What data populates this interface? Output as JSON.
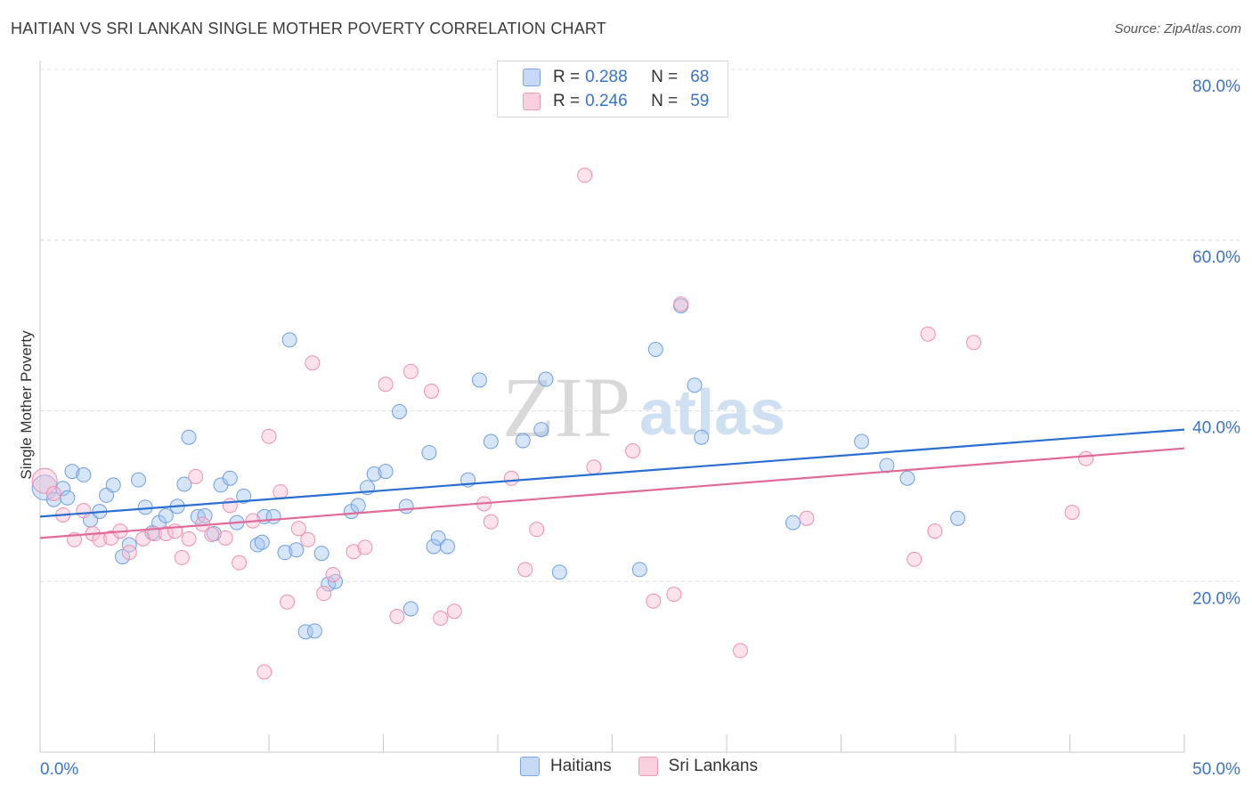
{
  "header": {
    "title": "HAITIAN VS SRI LANKAN SINGLE MOTHER POVERTY CORRELATION CHART",
    "source": "Source: ZipAtlas.com"
  },
  "watermark": {
    "zip": "ZIP",
    "atlas": "atlas"
  },
  "legend": {
    "rows": [
      {
        "r_label": "R =",
        "r_value": "0.288",
        "n_label": "N =",
        "n_value": "68"
      },
      {
        "r_label": "R =",
        "r_value": "0.246",
        "n_label": "N =",
        "n_value": "59"
      }
    ]
  },
  "bottom_legend": {
    "haitians": "Haitians",
    "srilankans": "Sri Lankans"
  },
  "chart_data": {
    "type": "scatter",
    "title": "HAITIAN VS SRI LANKAN SINGLE MOTHER POVERTY CORRELATION CHART",
    "xlabel": "",
    "ylabel": "Single Mother Poverty",
    "xlim": [
      0,
      50
    ],
    "ylim": [
      0,
      80
    ],
    "x_tick_labels": [
      "0.0%",
      "50.0%"
    ],
    "y_ticks": [
      20,
      40,
      60,
      80
    ],
    "y_tick_labels": [
      "20.0%",
      "40.0%",
      "60.0%",
      "80.0%"
    ],
    "grid": "horizontal dashed",
    "legend_position": "top-center",
    "colors": {
      "haitians": "#6f9fe0",
      "srilankans": "#ee8fb0",
      "haitians_line": "#2a6ed2",
      "srilankans_line": "#e06a98"
    },
    "series": [
      {
        "name": "Haitians",
        "trend": [
          [
            0,
            27.6
          ],
          [
            50,
            37.8
          ]
        ],
        "points": [
          [
            0.2,
            31.0
          ],
          [
            0.6,
            29.6
          ],
          [
            1.0,
            30.9
          ],
          [
            1.2,
            29.8
          ],
          [
            1.4,
            32.9
          ],
          [
            1.9,
            32.5
          ],
          [
            2.2,
            27.2
          ],
          [
            2.6,
            28.2
          ],
          [
            2.9,
            30.1
          ],
          [
            3.2,
            31.3
          ],
          [
            3.6,
            22.9
          ],
          [
            3.9,
            24.3
          ],
          [
            4.3,
            31.9
          ],
          [
            4.6,
            28.7
          ],
          [
            4.9,
            25.7
          ],
          [
            5.2,
            26.9
          ],
          [
            5.5,
            27.7
          ],
          [
            6.0,
            28.8
          ],
          [
            6.3,
            31.4
          ],
          [
            6.5,
            36.9
          ],
          [
            6.9,
            27.6
          ],
          [
            7.2,
            27.7
          ],
          [
            7.6,
            25.6
          ],
          [
            7.9,
            31.3
          ],
          [
            8.3,
            32.1
          ],
          [
            8.6,
            26.9
          ],
          [
            8.9,
            30.0
          ],
          [
            9.5,
            24.3
          ],
          [
            9.7,
            24.6
          ],
          [
            9.8,
            27.6
          ],
          [
            10.2,
            27.6
          ],
          [
            10.7,
            23.4
          ],
          [
            10.9,
            48.3
          ],
          [
            11.2,
            23.7
          ],
          [
            11.6,
            14.1
          ],
          [
            12.0,
            14.2
          ],
          [
            12.3,
            23.3
          ],
          [
            12.6,
            19.7
          ],
          [
            12.9,
            20.0
          ],
          [
            13.6,
            28.2
          ],
          [
            13.9,
            28.9
          ],
          [
            14.3,
            31.0
          ],
          [
            14.6,
            32.6
          ],
          [
            15.1,
            32.9
          ],
          [
            15.7,
            39.9
          ],
          [
            16.0,
            28.8
          ],
          [
            16.2,
            16.8
          ],
          [
            17.0,
            35.1
          ],
          [
            17.2,
            24.1
          ],
          [
            17.4,
            25.1
          ],
          [
            17.8,
            24.1
          ],
          [
            18.7,
            31.9
          ],
          [
            19.2,
            43.6
          ],
          [
            19.7,
            36.4
          ],
          [
            21.1,
            36.5
          ],
          [
            21.9,
            37.8
          ],
          [
            22.1,
            43.7
          ],
          [
            22.7,
            21.1
          ],
          [
            26.2,
            21.4
          ],
          [
            26.9,
            47.2
          ],
          [
            28.0,
            52.3
          ],
          [
            28.6,
            43.0
          ],
          [
            28.9,
            36.9
          ],
          [
            32.9,
            26.9
          ],
          [
            35.9,
            36.4
          ],
          [
            37.0,
            33.6
          ],
          [
            37.9,
            32.1
          ],
          [
            40.1,
            27.4
          ]
        ]
      },
      {
        "name": "Sri Lankans",
        "trend": [
          [
            0,
            25.1
          ],
          [
            50,
            35.6
          ]
        ],
        "points": [
          [
            0.2,
            31.8
          ],
          [
            0.6,
            30.3
          ],
          [
            1.0,
            27.8
          ],
          [
            1.5,
            24.9
          ],
          [
            1.9,
            28.3
          ],
          [
            2.3,
            25.6
          ],
          [
            2.6,
            24.9
          ],
          [
            3.1,
            25.1
          ],
          [
            3.5,
            25.9
          ],
          [
            3.9,
            23.4
          ],
          [
            4.5,
            25.0
          ],
          [
            5.0,
            25.6
          ],
          [
            5.5,
            25.6
          ],
          [
            5.9,
            25.9
          ],
          [
            6.2,
            22.8
          ],
          [
            6.5,
            25.0
          ],
          [
            6.8,
            32.3
          ],
          [
            7.1,
            26.7
          ],
          [
            7.5,
            25.5
          ],
          [
            8.1,
            25.1
          ],
          [
            8.3,
            28.9
          ],
          [
            8.7,
            22.2
          ],
          [
            9.3,
            27.1
          ],
          [
            9.8,
            9.4
          ],
          [
            10.0,
            37.0
          ],
          [
            10.5,
            30.5
          ],
          [
            10.8,
            17.6
          ],
          [
            11.3,
            26.2
          ],
          [
            11.7,
            24.9
          ],
          [
            11.9,
            45.6
          ],
          [
            12.4,
            18.6
          ],
          [
            12.8,
            20.8
          ],
          [
            13.7,
            23.5
          ],
          [
            14.2,
            24.0
          ],
          [
            15.1,
            43.1
          ],
          [
            15.6,
            15.9
          ],
          [
            16.2,
            44.6
          ],
          [
            17.1,
            42.3
          ],
          [
            17.5,
            15.7
          ],
          [
            18.1,
            16.5
          ],
          [
            19.4,
            29.1
          ],
          [
            19.7,
            27.0
          ],
          [
            20.6,
            32.1
          ],
          [
            21.2,
            21.4
          ],
          [
            21.7,
            26.1
          ],
          [
            23.8,
            67.6
          ],
          [
            24.2,
            33.4
          ],
          [
            25.9,
            35.3
          ],
          [
            26.8,
            17.7
          ],
          [
            27.7,
            18.5
          ],
          [
            28.0,
            52.5
          ],
          [
            30.6,
            11.9
          ],
          [
            33.5,
            27.4
          ],
          [
            38.2,
            22.6
          ],
          [
            38.8,
            49.0
          ],
          [
            39.1,
            25.9
          ],
          [
            40.8,
            48.0
          ],
          [
            45.1,
            28.1
          ],
          [
            45.7,
            34.4
          ]
        ]
      }
    ]
  }
}
